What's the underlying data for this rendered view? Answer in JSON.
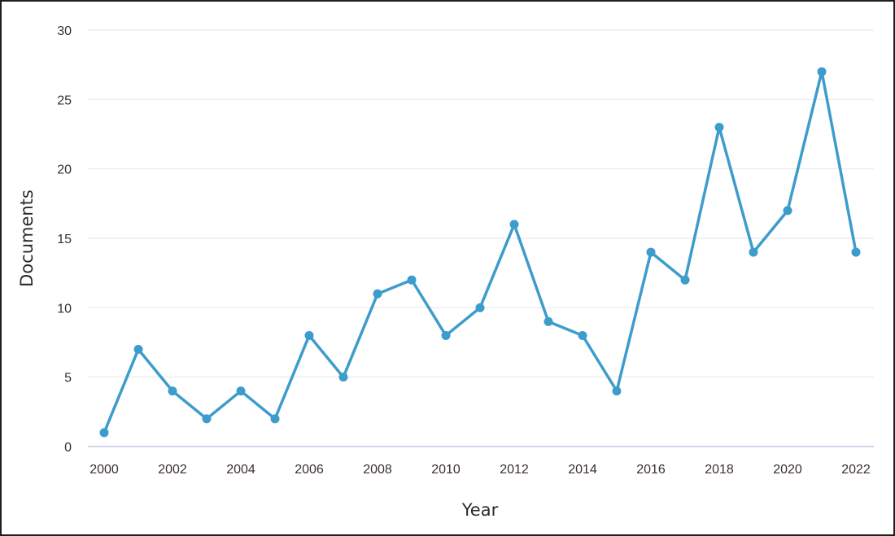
{
  "chart_data": {
    "type": "line",
    "title": "",
    "xlabel": "Year",
    "ylabel": "Documents",
    "x": [
      2000,
      2001,
      2002,
      2003,
      2004,
      2005,
      2006,
      2007,
      2008,
      2009,
      2010,
      2011,
      2012,
      2013,
      2014,
      2015,
      2016,
      2017,
      2018,
      2019,
      2020,
      2021,
      2022
    ],
    "series": [
      {
        "name": "",
        "values": [
          1,
          7,
          4,
          2,
          4,
          2,
          8,
          5,
          11,
          12,
          8,
          10,
          16,
          9,
          8,
          4,
          14,
          12,
          23,
          14,
          17,
          27,
          14
        ]
      }
    ],
    "xticks": [
      "2000",
      "2002",
      "2004",
      "2006",
      "2008",
      "2010",
      "2012",
      "2014",
      "2016",
      "2018",
      "2020",
      "2022"
    ],
    "yticks": [
      "0",
      "5",
      "10",
      "15",
      "20",
      "25",
      "30"
    ],
    "xlim": [
      2000,
      2022
    ],
    "ylim": [
      0,
      30
    ],
    "grid": "horizontal",
    "legend": "none",
    "colors": {
      "series": "#3d9ccb",
      "grid": "#e6e6ee",
      "axis": "#c9c9e6",
      "text": "#3b2f2f"
    }
  }
}
